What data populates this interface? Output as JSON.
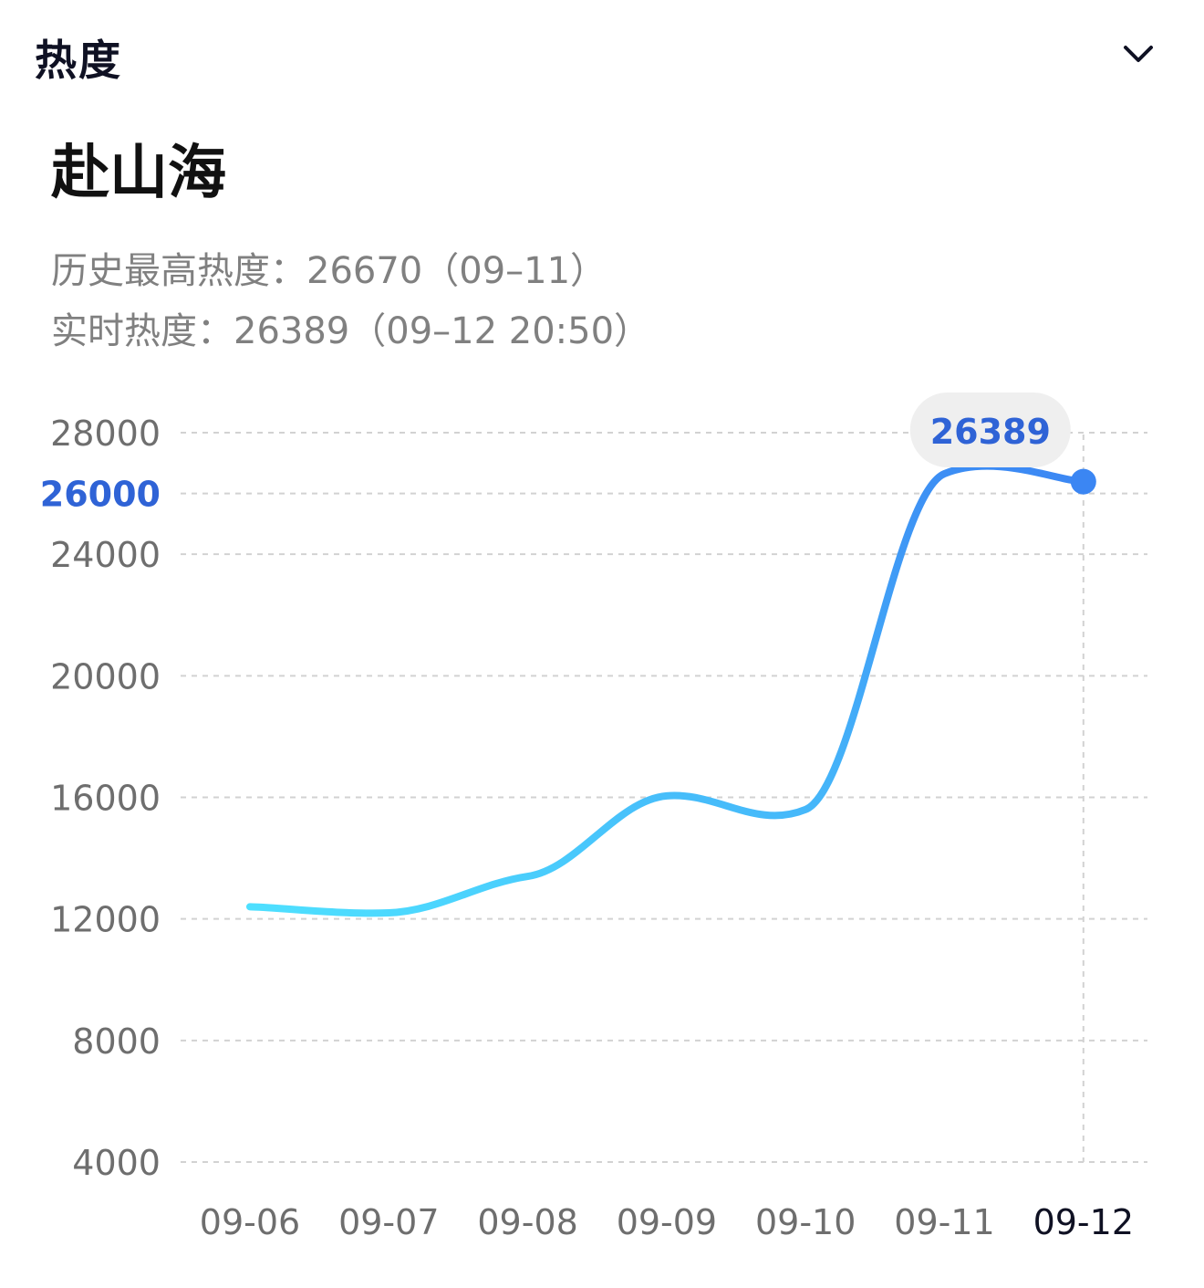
{
  "header": {
    "section_label": "热度",
    "collapse_icon": "chevron-down-icon"
  },
  "title": "赴山海",
  "stats": {
    "peak_label": "历史最高热度：",
    "peak_value": "26670",
    "peak_date": "（09–11）",
    "realtime_label": "实时热度：",
    "realtime_value": "26389",
    "realtime_time": "（09–12 20:50）"
  },
  "colors": {
    "line_start": "#4ee0ff",
    "line_end": "#3b86f3",
    "highlight_text": "#2f63d6",
    "tooltip_bg": "#efefef",
    "grid": "#d2d2d2",
    "axis_text": "#6e6e6e",
    "selected_text": "#0f1123"
  },
  "chart_data": {
    "type": "line",
    "x": [
      "09-06",
      "09-07",
      "09-08",
      "09-09",
      "09-10",
      "09-11",
      "09-12"
    ],
    "series": [
      {
        "values": [
          12400,
          12200,
          13400,
          16050,
          15600,
          26650,
          26389
        ]
      }
    ],
    "y_ticks": [
      4000,
      8000,
      12000,
      16000,
      20000,
      24000,
      26000,
      28000
    ],
    "highlighted_y_tick": 26000,
    "ylim": [
      4000,
      28000
    ],
    "grid": true,
    "selected_x": "09-12",
    "tooltip_value": "26389"
  }
}
